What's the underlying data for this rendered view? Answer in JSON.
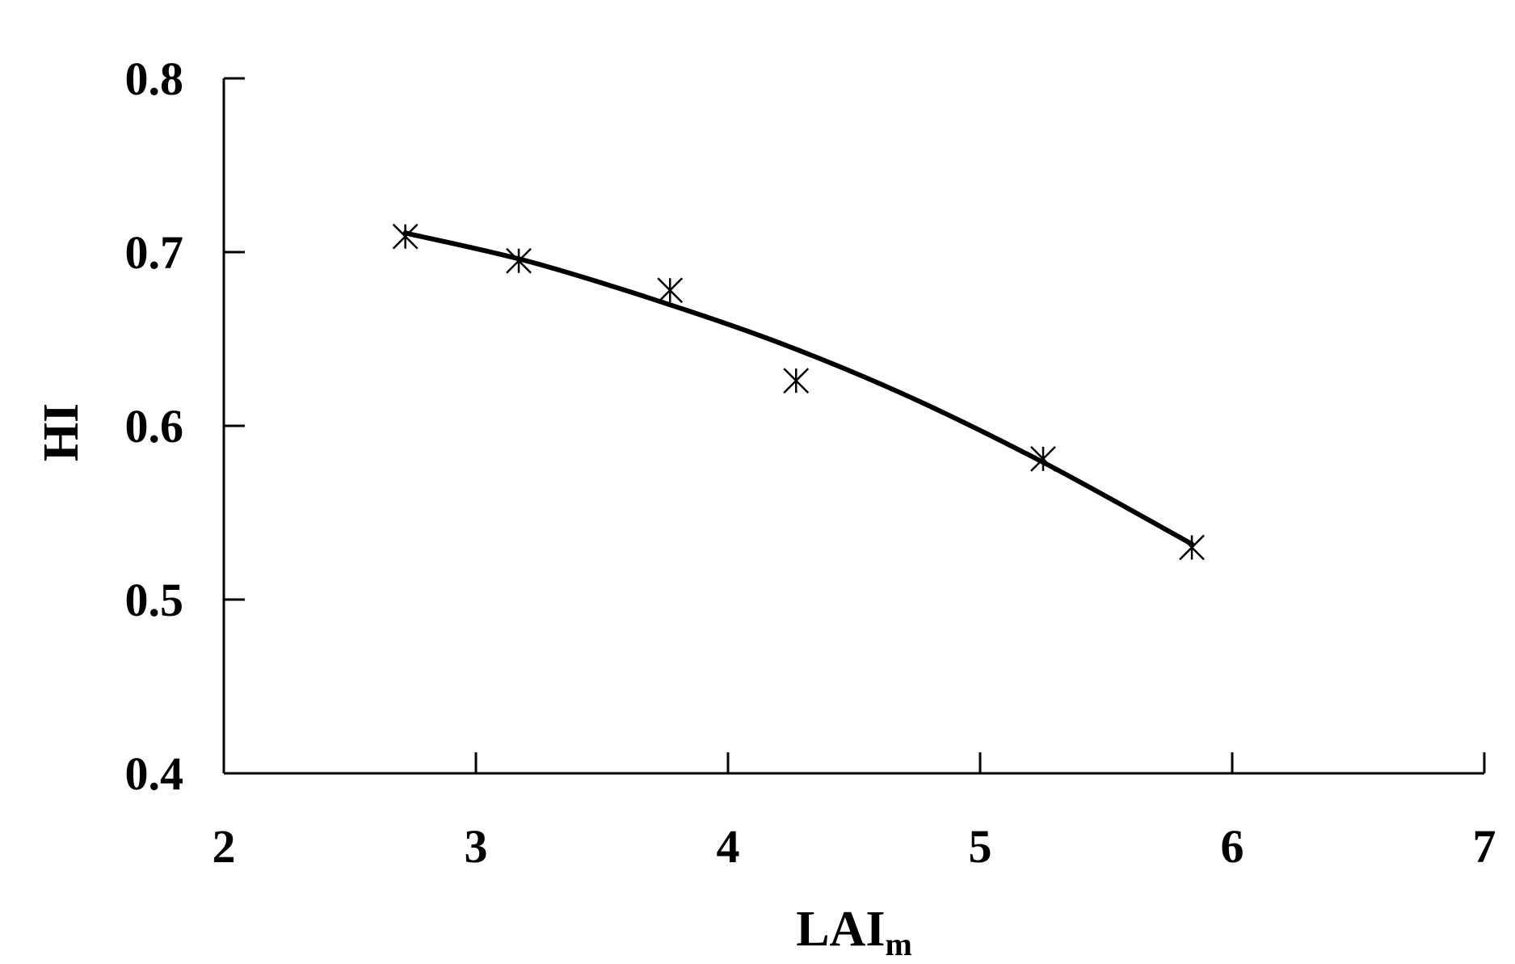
{
  "chart_data": {
    "type": "scatter",
    "title": "",
    "xlabel": "LAI",
    "xlabel_subscript": "m",
    "ylabel": "HI",
    "xlim": [
      2,
      7
    ],
    "ylim": [
      0.4,
      0.8
    ],
    "xticks": [
      "2",
      "3",
      "4",
      "5",
      "6",
      "7"
    ],
    "yticks": [
      "0.4",
      "0.5",
      "0.6",
      "0.7",
      "0.8"
    ],
    "grid": false,
    "series": [
      {
        "marker": "asterisk",
        "points": [
          {
            "x": 2.72,
            "y": 0.709
          },
          {
            "x": 3.17,
            "y": 0.695
          },
          {
            "x": 3.77,
            "y": 0.678
          },
          {
            "x": 4.27,
            "y": 0.626
          },
          {
            "x": 5.25,
            "y": 0.581
          },
          {
            "x": 5.84,
            "y": 0.53
          }
        ]
      }
    ],
    "fit_curve": {
      "x": [
        2.72,
        3.2,
        3.7,
        4.2,
        4.7,
        5.25,
        5.84
      ],
      "y": [
        0.711,
        0.695,
        0.673,
        0.648,
        0.618,
        0.579,
        0.532
      ]
    }
  }
}
